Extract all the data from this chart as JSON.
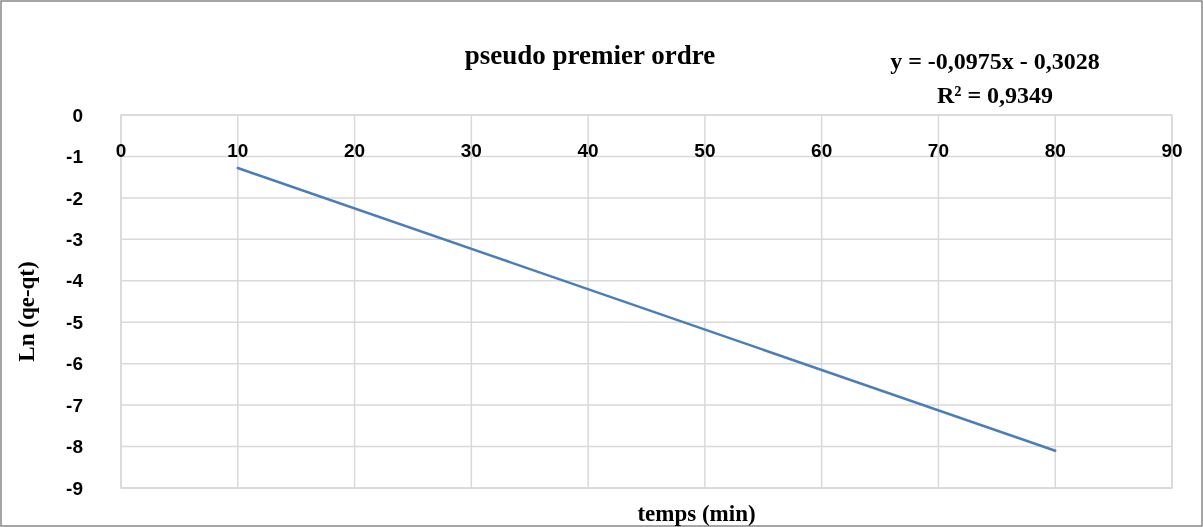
{
  "chart_data": {
    "type": "line",
    "title": "pseudo premier ordre",
    "xlabel": "temps (min)",
    "ylabel": "Ln (qe-qt)",
    "annotations": [
      "y = -0,0975x - 0,3028",
      "R² = 0,9349"
    ],
    "series": [
      {
        "color": "#4a7ebb",
        "x": [
          10,
          80
        ],
        "values": [
          -1.28,
          -8.1
        ]
      }
    ],
    "xlim": [
      0,
      90
    ],
    "xticks": [
      0,
      10,
      20,
      30,
      40,
      50,
      60,
      70,
      80,
      90
    ],
    "ylim": [
      -9,
      0
    ],
    "yticks": [
      0,
      -1,
      -2,
      -3,
      -4,
      -5,
      -6,
      -7,
      -8,
      -9
    ],
    "grid": true,
    "marker": "none",
    "line_style": "solid"
  }
}
